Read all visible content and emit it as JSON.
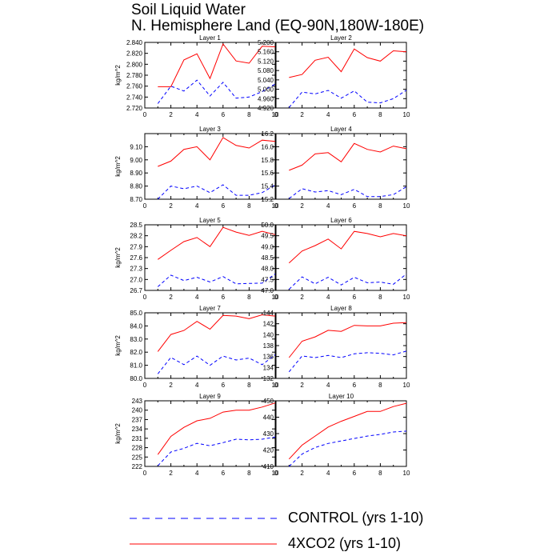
{
  "figure": {
    "title_line1": "Soil Liquid Water",
    "title_line2": "N. Hemisphere Land (EQ-90N,180W-180E)"
  },
  "legend": {
    "control_label": "CONTROL (yrs 1-10)",
    "control_color": "#0000ff",
    "co2_label": "4XCO2 (yrs 1-10)",
    "co2_color": "#ff0000"
  },
  "chart_data": [
    {
      "type": "line",
      "title": "Layer 1",
      "ylabel": "kg/m^2",
      "xlim": [
        0,
        10
      ],
      "ylim": [
        2.72,
        2.84
      ],
      "xticks": [
        "0",
        "2",
        "4",
        "6",
        "8",
        "10"
      ],
      "yticks": [
        "2.720",
        "2.740",
        "2.760",
        "2.780",
        "2.800",
        "2.820",
        "2.840"
      ],
      "x": [
        1,
        2,
        3,
        4,
        5,
        6,
        7,
        8,
        9,
        10
      ],
      "series": [
        {
          "name": "4XCO2 (yrs 1-10)",
          "values": [
            2.759,
            2.759,
            2.808,
            2.819,
            2.774,
            2.837,
            2.806,
            2.802,
            2.833,
            2.832
          ]
        },
        {
          "name": "CONTROL (yrs 1-10)",
          "values": [
            2.728,
            2.76,
            2.751,
            2.771,
            2.742,
            2.767,
            2.738,
            2.74,
            2.75,
            2.764
          ]
        }
      ]
    },
    {
      "type": "line",
      "title": "Layer 2",
      "ylabel": "",
      "xlim": [
        0,
        10
      ],
      "ylim": [
        4.92,
        5.2
      ],
      "xticks": [
        "0",
        "2",
        "4",
        "6",
        "8",
        "10"
      ],
      "yticks": [
        "4.920",
        "4.960",
        "5.000",
        "5.040",
        "5.080",
        "5.120",
        "5.160",
        "5.200"
      ],
      "x": [
        1,
        2,
        3,
        4,
        5,
        6,
        7,
        8,
        9,
        10
      ],
      "series": [
        {
          "name": "4XCO2 (yrs 1-10)",
          "values": [
            5.05,
            5.063,
            5.124,
            5.137,
            5.075,
            5.172,
            5.135,
            5.12,
            5.164,
            5.16
          ]
        },
        {
          "name": "CONTROL (yrs 1-10)",
          "values": [
            4.922,
            4.988,
            4.98,
            4.995,
            4.962,
            4.993,
            4.945,
            4.942,
            4.96,
            4.996
          ]
        }
      ]
    },
    {
      "type": "line",
      "title": "Layer 3",
      "ylabel": "kg/m^2",
      "xlim": [
        0,
        10
      ],
      "ylim": [
        8.7,
        9.2
      ],
      "xticks": [
        "0",
        "2",
        "4",
        "6",
        "8",
        "10"
      ],
      "yticks": [
        "8.70",
        "8.80",
        "8.90",
        "9.00",
        "9.10"
      ],
      "x": [
        1,
        2,
        3,
        4,
        5,
        6,
        7,
        8,
        9,
        10
      ],
      "series": [
        {
          "name": "4XCO2 (yrs 1-10)",
          "values": [
            8.95,
            8.99,
            9.08,
            9.1,
            9.0,
            9.17,
            9.11,
            9.09,
            9.15,
            9.14
          ]
        },
        {
          "name": "CONTROL (yrs 1-10)",
          "values": [
            8.7,
            8.8,
            8.78,
            8.8,
            8.75,
            8.81,
            8.73,
            8.73,
            8.75,
            8.81
          ]
        }
      ]
    },
    {
      "type": "line",
      "title": "Layer 4",
      "ylabel": "",
      "xlim": [
        0,
        10
      ],
      "ylim": [
        15.2,
        16.2
      ],
      "xticks": [
        "0",
        "2",
        "4",
        "6",
        "8",
        "10"
      ],
      "yticks": [
        "15.2",
        "15.4",
        "15.6",
        "15.8",
        "16.0",
        "16.2"
      ],
      "x": [
        1,
        2,
        3,
        4,
        5,
        6,
        7,
        8,
        9,
        10
      ],
      "series": [
        {
          "name": "4XCO2 (yrs 1-10)",
          "values": [
            15.64,
            15.72,
            15.89,
            15.91,
            15.77,
            16.05,
            15.96,
            15.92,
            16.01,
            15.97
          ]
        },
        {
          "name": "CONTROL (yrs 1-10)",
          "values": [
            15.21,
            15.36,
            15.31,
            15.33,
            15.27,
            15.35,
            15.24,
            15.24,
            15.27,
            15.39
          ]
        }
      ]
    },
    {
      "type": "line",
      "title": "Layer 5",
      "ylabel": "kg/m^2",
      "xlim": [
        0,
        10
      ],
      "ylim": [
        26.7,
        28.5
      ],
      "xticks": [
        "0",
        "2",
        "4",
        "6",
        "8",
        "10"
      ],
      "yticks": [
        "26.7",
        "27.0",
        "27.3",
        "27.6",
        "27.9",
        "28.2",
        "28.5"
      ],
      "x": [
        1,
        2,
        3,
        4,
        5,
        6,
        7,
        8,
        9,
        10
      ],
      "series": [
        {
          "name": "4XCO2 (yrs 1-10)",
          "values": [
            27.55,
            27.8,
            28.04,
            28.15,
            27.9,
            28.43,
            28.3,
            28.21,
            28.32,
            28.23
          ]
        },
        {
          "name": "CONTROL (yrs 1-10)",
          "values": [
            26.8,
            27.12,
            26.97,
            27.06,
            26.93,
            27.08,
            26.88,
            26.89,
            26.9,
            27.15
          ]
        }
      ]
    },
    {
      "type": "line",
      "title": "Layer 6",
      "ylabel": "",
      "xlim": [
        0,
        10
      ],
      "ylim": [
        47.0,
        50.0
      ],
      "xticks": [
        "0",
        "2",
        "4",
        "6",
        "8",
        "10"
      ],
      "yticks": [
        "47.0",
        "47.5",
        "48.0",
        "48.5",
        "49.0",
        "49.5",
        "50.0"
      ],
      "x": [
        1,
        2,
        3,
        4,
        5,
        6,
        7,
        8,
        9,
        10
      ],
      "series": [
        {
          "name": "4XCO2 (yrs 1-10)",
          "values": [
            48.25,
            48.8,
            49.05,
            49.35,
            48.9,
            49.7,
            49.6,
            49.45,
            49.6,
            49.5
          ]
        },
        {
          "name": "CONTROL (yrs 1-10)",
          "values": [
            47.05,
            47.62,
            47.3,
            47.6,
            47.25,
            47.6,
            47.35,
            47.38,
            47.28,
            47.75
          ]
        }
      ]
    },
    {
      "type": "line",
      "title": "Layer 7",
      "ylabel": "kg/m^2",
      "xlim": [
        0,
        10
      ],
      "ylim": [
        80.0,
        85.0
      ],
      "xticks": [
        "0",
        "2",
        "4",
        "6",
        "8",
        "10"
      ],
      "yticks": [
        "80.0",
        "81.0",
        "82.0",
        "83.0",
        "84.0",
        "85.0"
      ],
      "x": [
        1,
        2,
        3,
        4,
        5,
        6,
        7,
        8,
        9,
        10
      ],
      "series": [
        {
          "name": "4XCO2 (yrs 1-10)",
          "values": [
            82.05,
            83.35,
            83.65,
            84.35,
            83.75,
            84.8,
            84.75,
            84.55,
            84.85,
            84.75
          ]
        },
        {
          "name": "CONTROL (yrs 1-10)",
          "values": [
            80.35,
            81.6,
            81.05,
            81.7,
            81.0,
            81.7,
            81.4,
            81.55,
            81.05,
            81.8
          ]
        }
      ]
    },
    {
      "type": "line",
      "title": "Layer 8",
      "ylabel": "",
      "xlim": [
        0,
        10
      ],
      "ylim": [
        132,
        144
      ],
      "xticks": [
        "0",
        "2",
        "4",
        "6",
        "8",
        "10"
      ],
      "yticks": [
        "132",
        "134",
        "136",
        "138",
        "140",
        "142",
        "144"
      ],
      "x": [
        1,
        2,
        3,
        4,
        5,
        6,
        7,
        8,
        9,
        10
      ],
      "series": [
        {
          "name": "4XCO2 (yrs 1-10)",
          "values": [
            135.8,
            138.8,
            139.6,
            140.8,
            140.6,
            141.7,
            141.6,
            141.6,
            142.1,
            142.2
          ]
        },
        {
          "name": "CONTROL (yrs 1-10)",
          "values": [
            133.2,
            136.1,
            135.8,
            136.2,
            135.8,
            136.5,
            136.7,
            136.6,
            136.3,
            137.0
          ]
        }
      ]
    },
    {
      "type": "line",
      "title": "Layer 9",
      "ylabel": "kg/m^2",
      "xlim": [
        0,
        10
      ],
      "ylim": [
        222,
        243
      ],
      "xticks": [
        "0",
        "2",
        "4",
        "6",
        "8",
        "10"
      ],
      "yticks": [
        "222",
        "225",
        "228",
        "231",
        "234",
        "237",
        "240",
        "243"
      ],
      "x": [
        1,
        2,
        3,
        4,
        5,
        6,
        7,
        8,
        9,
        10
      ],
      "series": [
        {
          "name": "4XCO2 (yrs 1-10)",
          "values": [
            225.8,
            231.6,
            234.5,
            236.6,
            237.4,
            239.4,
            240.0,
            240.0,
            241.0,
            242.3
          ]
        },
        {
          "name": "CONTROL (yrs 1-10)",
          "values": [
            222.2,
            226.6,
            227.8,
            229.4,
            228.6,
            229.6,
            230.7,
            230.5,
            230.7,
            231.4
          ]
        }
      ]
    },
    {
      "type": "line",
      "title": "Layer 10",
      "ylabel": "",
      "xlim": [
        0,
        10
      ],
      "ylim": [
        410,
        450
      ],
      "xticks": [
        "0",
        "2",
        "4",
        "6",
        "8",
        "10"
      ],
      "yticks": [
        "410",
        "420",
        "430",
        "440",
        "450"
      ],
      "x": [
        1,
        2,
        3,
        4,
        5,
        6,
        7,
        8,
        9,
        10
      ],
      "series": [
        {
          "name": "4XCO2 (yrs 1-10)",
          "values": [
            414.5,
            423.0,
            428.5,
            434.0,
            437.5,
            440.5,
            443.5,
            443.5,
            446.5,
            448.5
          ]
        },
        {
          "name": "CONTROL (yrs 1-10)",
          "values": [
            410.0,
            417.5,
            421.5,
            424.0,
            425.5,
            427.0,
            428.5,
            429.5,
            431.0,
            431.5
          ]
        }
      ]
    }
  ]
}
